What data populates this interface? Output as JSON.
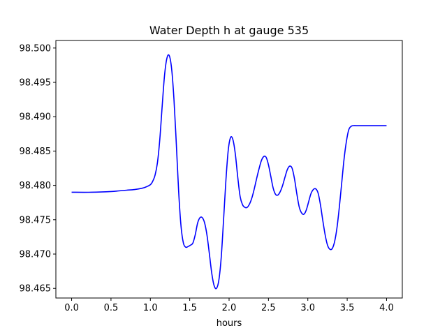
{
  "chart_data": {
    "type": "line",
    "title": "Water Depth h at gauge 535",
    "xlabel": "hours",
    "ylabel": "",
    "xlim": [
      -0.2,
      4.2
    ],
    "ylim": [
      98.4636,
      98.5011
    ],
    "x_ticks": [
      0.0,
      0.5,
      1.0,
      1.5,
      2.0,
      2.5,
      3.0,
      3.5,
      4.0
    ],
    "x_tick_labels": [
      "0.0",
      "0.5",
      "1.0",
      "1.5",
      "2.0",
      "2.5",
      "3.0",
      "3.5",
      "4.0"
    ],
    "y_ticks": [
      98.465,
      98.47,
      98.475,
      98.48,
      98.485,
      98.49,
      98.495,
      98.5
    ],
    "y_tick_labels": [
      "98.465",
      "98.470",
      "98.475",
      "98.480",
      "98.485",
      "98.490",
      "98.495",
      "98.500"
    ],
    "grid": false,
    "series": [
      {
        "name": "h",
        "color": "#0000ff",
        "x": [
          0.0,
          0.25,
          0.5,
          0.6,
          0.7,
          0.8,
          0.9,
          0.95,
          1.0,
          1.03,
          1.06,
          1.09,
          1.12,
          1.15,
          1.18,
          1.21,
          1.24,
          1.27,
          1.3,
          1.33,
          1.36,
          1.39,
          1.42,
          1.45,
          1.48,
          1.51,
          1.54,
          1.57,
          1.6,
          1.63,
          1.66,
          1.69,
          1.72,
          1.75,
          1.78,
          1.81,
          1.84,
          1.87,
          1.9,
          1.93,
          1.96,
          1.99,
          2.02,
          2.05,
          2.08,
          2.11,
          2.14,
          2.17,
          2.2,
          2.23,
          2.26,
          2.29,
          2.32,
          2.35,
          2.38,
          2.41,
          2.44,
          2.47,
          2.5,
          2.53,
          2.56,
          2.59,
          2.62,
          2.65,
          2.68,
          2.71,
          2.74,
          2.77,
          2.8,
          2.83,
          2.86,
          2.89,
          2.92,
          2.95,
          2.98,
          3.01,
          3.04,
          3.07,
          3.1,
          3.13,
          3.16,
          3.19,
          3.22,
          3.25,
          3.28,
          3.31,
          3.34,
          3.37,
          3.4,
          3.43,
          3.46,
          3.49,
          3.52,
          3.55,
          3.58,
          3.61,
          3.64,
          3.67,
          3.7,
          3.73,
          3.76,
          3.79,
          3.82,
          3.85,
          3.88,
          3.91,
          3.94,
          3.97,
          4.0
        ],
        "values": [
          98.479,
          98.479,
          98.4791,
          98.4792,
          98.4793,
          98.4794,
          98.4796,
          98.4798,
          98.4801,
          98.4806,
          98.4815,
          98.4833,
          98.4867,
          98.4915,
          98.496,
          98.4985,
          98.4989,
          98.497,
          98.4925,
          98.486,
          98.479,
          98.474,
          98.4716,
          98.471,
          98.4711,
          98.4713,
          98.4716,
          98.4728,
          98.4745,
          98.4753,
          98.4753,
          98.4745,
          98.4727,
          98.47,
          98.4672,
          98.4654,
          98.465,
          98.4662,
          98.4695,
          98.475,
          98.4808,
          98.4852,
          98.487,
          98.4866,
          98.4845,
          98.4812,
          98.4784,
          98.4772,
          98.4768,
          98.4768,
          98.4773,
          98.4782,
          98.4795,
          98.481,
          98.4824,
          98.4836,
          98.4842,
          98.4841,
          98.483,
          98.4813,
          98.4796,
          98.4787,
          98.4786,
          98.4791,
          98.48,
          98.4812,
          98.4823,
          98.4828,
          98.4825,
          98.481,
          98.4788,
          98.4769,
          98.476,
          98.4758,
          98.4764,
          98.4776,
          98.4788,
          98.4794,
          98.4795,
          98.4789,
          98.4772,
          98.4749,
          98.4728,
          98.4713,
          98.4707,
          98.4708,
          98.4718,
          98.4738,
          98.4768,
          98.4803,
          98.4838,
          98.4864,
          98.4881,
          98.4886,
          98.4887,
          98.4887,
          98.4887,
          98.4887,
          98.4887,
          98.4887,
          98.4887,
          98.4887,
          98.4887,
          98.4887,
          98.4887,
          98.4887,
          98.4887,
          98.4887,
          98.4887
        ]
      }
    ]
  }
}
